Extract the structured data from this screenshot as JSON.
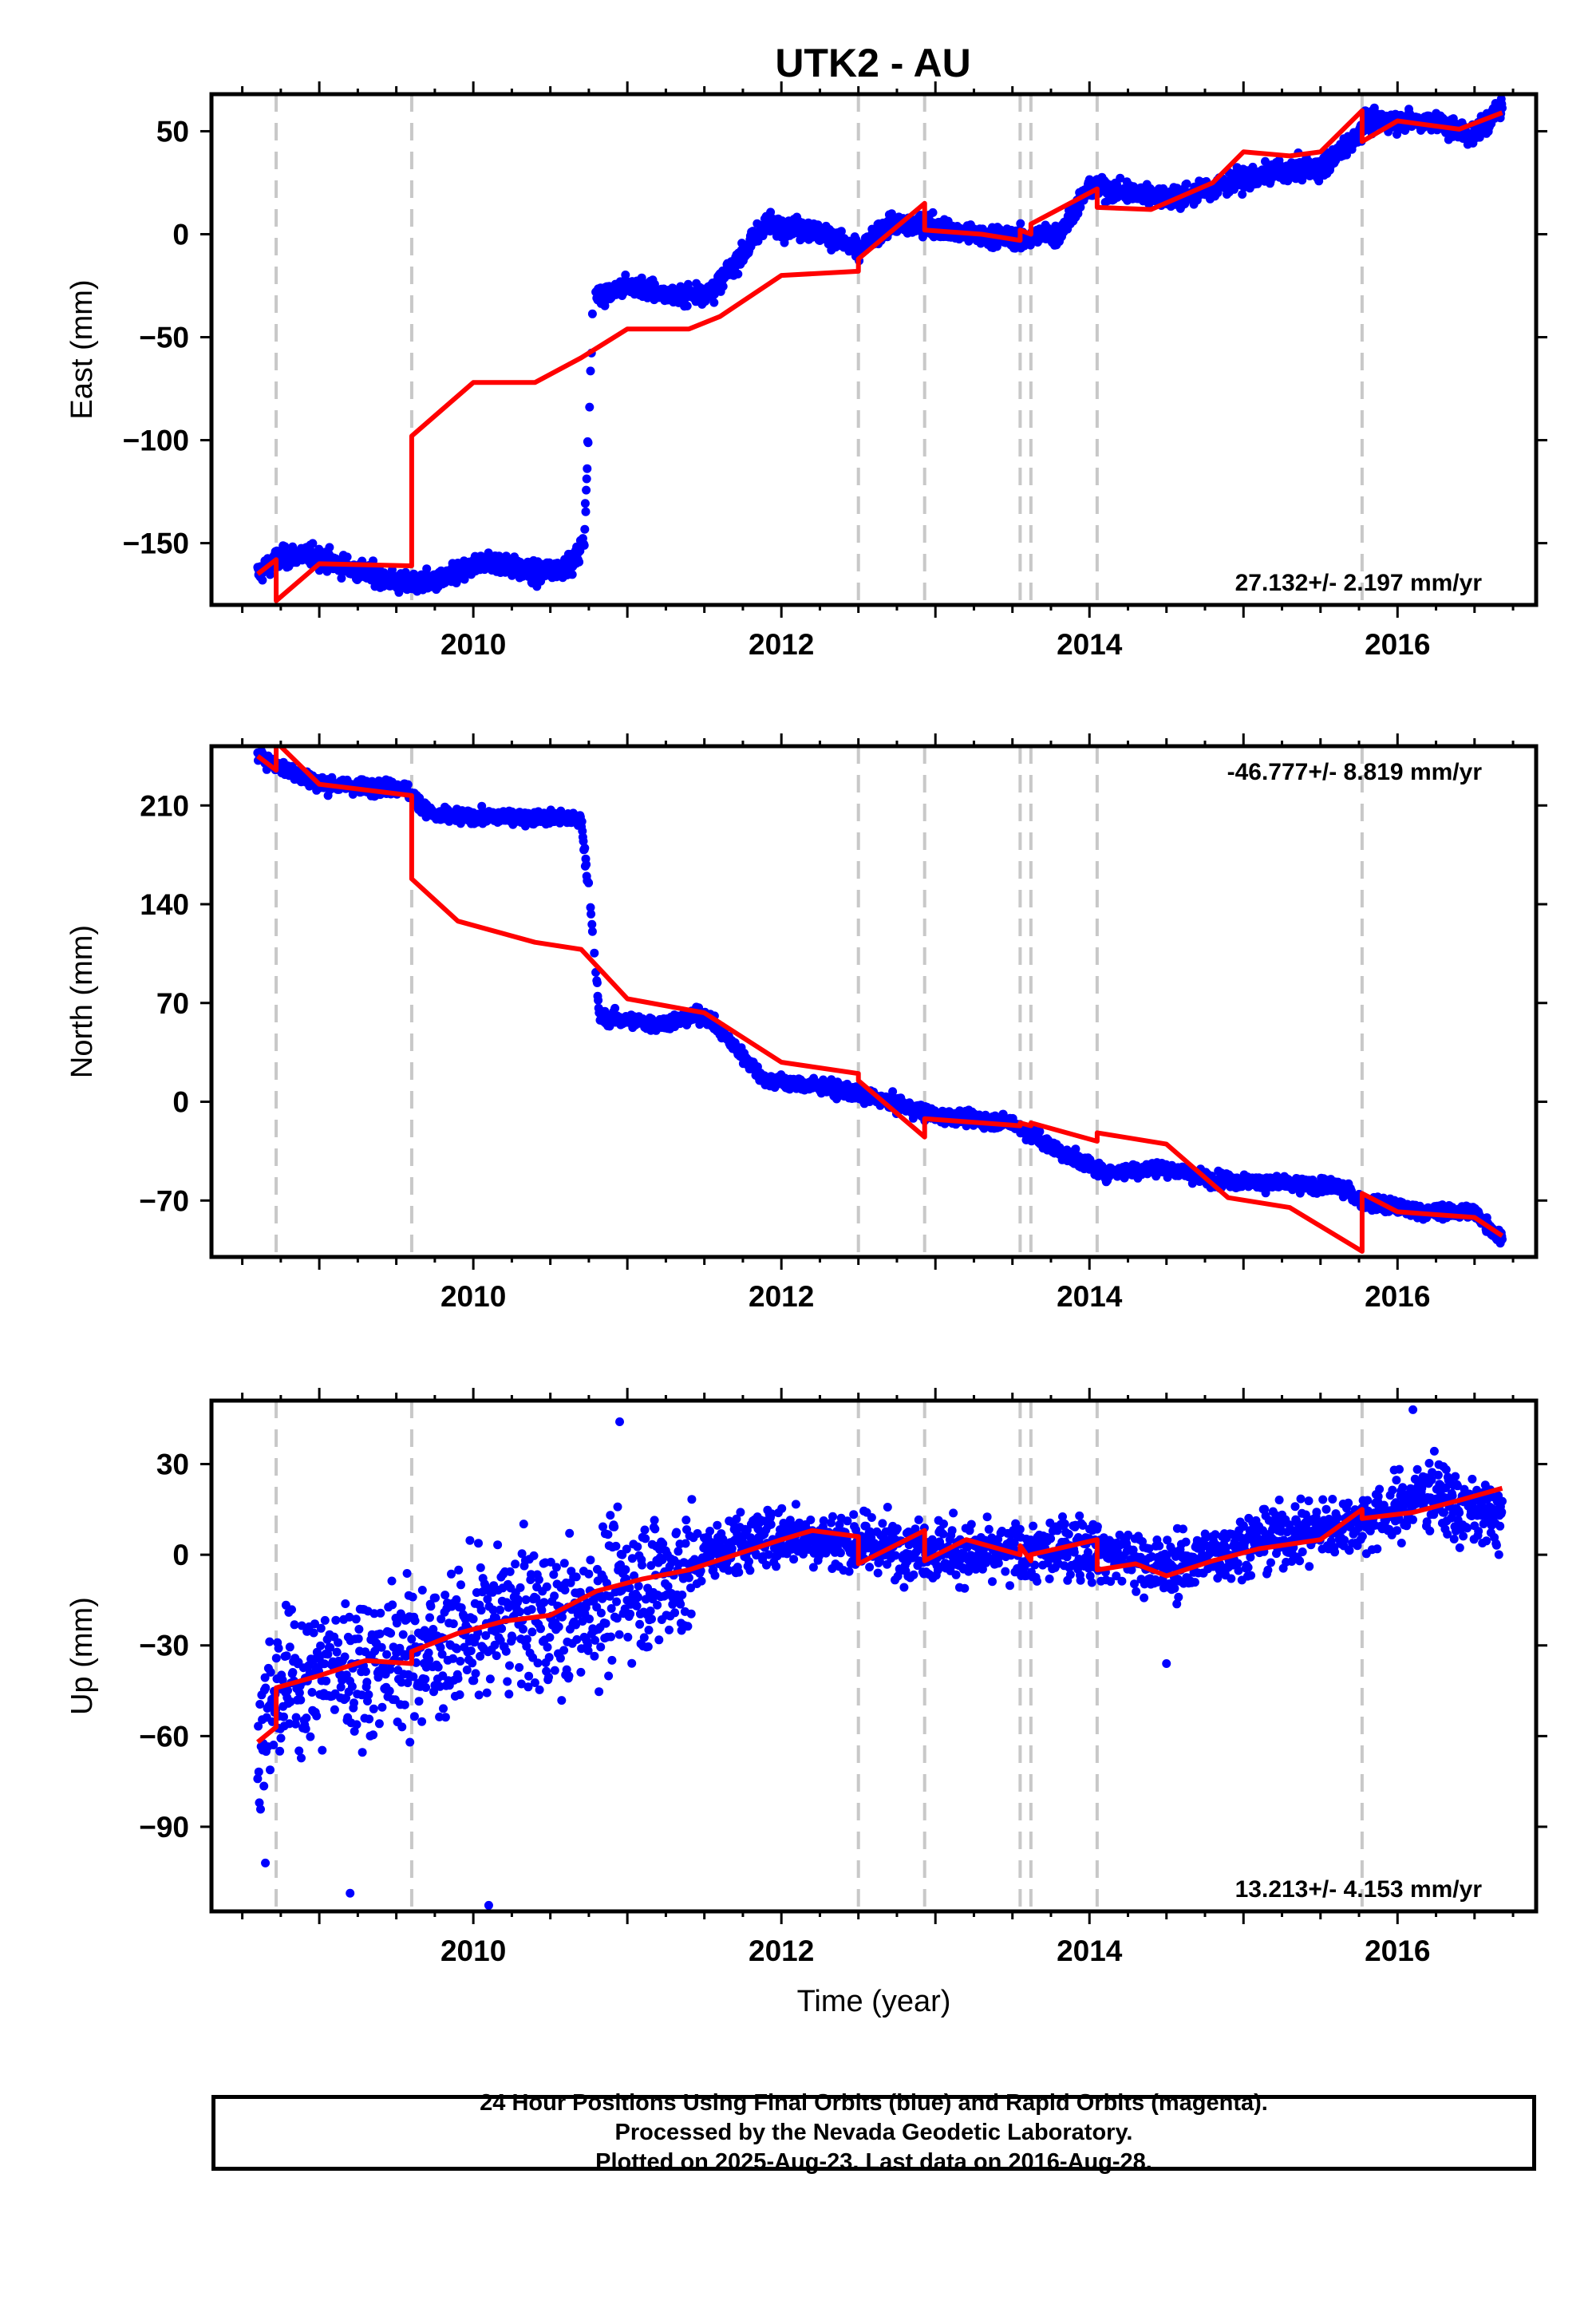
{
  "page_title": "UTK2 - AU",
  "footer": {
    "line1": "24 Hour Positions Using Final Orbits (blue) and Rapid Orbits (magenta).",
    "line2": "Processed by the Nevada Geodetic Laboratory.",
    "line3": "Plotted on 2025-Aug-23. Last data on 2016-Aug-28."
  },
  "colors": {
    "data": "#0000ff",
    "model": "#ff0000",
    "breaks": "#c8c8c8",
    "axis": "#000000"
  },
  "chart_data": [
    {
      "type": "scatter",
      "title": "UTK2 - AU",
      "ylabel": "East (mm)",
      "xlabel": "",
      "xlim": [
        2008.3,
        2016.9
      ],
      "ylim": [
        -180,
        68
      ],
      "yticks": [
        50,
        0,
        -50,
        -100,
        -150
      ],
      "ytick_labels": [
        "50",
        "0",
        "−50",
        "−100",
        "−150"
      ],
      "xticks": [
        2010,
        2012,
        2014,
        2016
      ],
      "rate_label": "27.132+/- 2.197 mm/yr",
      "rate_position": "bottom-right",
      "breaks": [
        2008.72,
        2009.6,
        2012.5,
        2012.93,
        2013.55,
        2013.62,
        2014.05,
        2015.77
      ],
      "series": [
        {
          "kind": "data",
          "x": [
            2008.6,
            2008.72,
            2008.9,
            2009.2,
            2009.55,
            2009.8,
            2010.1,
            2010.4,
            2010.65,
            2010.72,
            2010.78,
            2011.0,
            2011.3,
            2011.55,
            2011.9,
            2012.1,
            2012.3,
            2012.5,
            2012.7,
            2012.93,
            2013.2,
            2013.55,
            2013.8,
            2014.0,
            2014.3,
            2014.6,
            2014.9,
            2015.2,
            2015.5,
            2015.7,
            2015.8,
            2016.2,
            2016.5,
            2016.68
          ],
          "y": [
            -165,
            -158,
            -155,
            -162,
            -170,
            -168,
            -158,
            -165,
            -160,
            -148,
            -30,
            -25,
            -30,
            -28,
            5,
            3,
            0,
            -8,
            5,
            5,
            0,
            -2,
            0,
            23,
            20,
            18,
            25,
            30,
            32,
            45,
            55,
            55,
            48,
            62
          ]
        },
        {
          "kind": "model",
          "x": [
            2008.6,
            2008.72,
            2008.72,
            2009.0,
            2009.6,
            2009.6,
            2009.8,
            2010.0,
            2010.4,
            2010.7,
            2011.0,
            2011.4,
            2011.6,
            2012.0,
            2012.5,
            2012.5,
            2012.93,
            2012.93,
            2013.3,
            2013.55,
            2013.55,
            2013.62,
            2013.62,
            2014.05,
            2014.05,
            2014.4,
            2014.8,
            2015.0,
            2015.3,
            2015.5,
            2015.77,
            2015.77,
            2016.0,
            2016.4,
            2016.68
          ],
          "y": [
            -165,
            -158,
            -178,
            -160,
            -161,
            -98,
            -85,
            -72,
            -72,
            -60,
            -46,
            -46,
            -40,
            -20,
            -18,
            -12,
            15,
            2,
            0,
            -3,
            2,
            0,
            5,
            22,
            13,
            12,
            25,
            40,
            38,
            40,
            60,
            45,
            55,
            51,
            59
          ]
        }
      ]
    },
    {
      "type": "scatter",
      "title": "",
      "ylabel": "North (mm)",
      "xlabel": "",
      "xlim": [
        2008.3,
        2016.9
      ],
      "ylim": [
        -110,
        252
      ],
      "yticks": [
        210,
        140,
        70,
        0,
        -70
      ],
      "ytick_labels": [
        "210",
        "140",
        "70",
        "0",
        "−70"
      ],
      "xticks": [
        2010,
        2012,
        2014,
        2016
      ],
      "rate_label": "-46.777+/- 8.819 mm/yr",
      "rate_position": "top-right",
      "breaks": [
        2008.72,
        2009.6,
        2012.5,
        2012.93,
        2013.55,
        2013.62,
        2014.05,
        2015.77
      ],
      "series": [
        {
          "kind": "data",
          "x": [
            2008.6,
            2009.0,
            2009.55,
            2009.75,
            2010.2,
            2010.7,
            2010.75,
            2010.82,
            2011.2,
            2011.5,
            2011.9,
            2012.3,
            2012.7,
            2013.0,
            2013.5,
            2013.8,
            2014.1,
            2014.5,
            2014.8,
            2015.2,
            2015.6,
            2015.8,
            2016.2,
            2016.5,
            2016.68
          ],
          "y": [
            245,
            225,
            222,
            202,
            202,
            200,
            150,
            60,
            55,
            62,
            15,
            10,
            0,
            -10,
            -15,
            -35,
            -50,
            -47,
            -55,
            -58,
            -60,
            -72,
            -78,
            -78,
            -98
          ]
        },
        {
          "kind": "model",
          "x": [
            2008.6,
            2008.72,
            2008.72,
            2009.0,
            2009.6,
            2009.6,
            2009.9,
            2010.4,
            2010.7,
            2011.0,
            2011.5,
            2012.0,
            2012.5,
            2012.5,
            2012.93,
            2012.93,
            2013.55,
            2013.55,
            2013.62,
            2013.62,
            2014.05,
            2014.05,
            2014.5,
            2014.9,
            2015.3,
            2015.77,
            2015.77,
            2016.0,
            2016.5,
            2016.68
          ],
          "y": [
            245,
            235,
            255,
            225,
            217,
            158,
            128,
            113,
            108,
            73,
            63,
            28,
            20,
            15,
            -25,
            -12,
            -17,
            -15,
            -17,
            -15,
            -28,
            -22,
            -30,
            -68,
            -75,
            -106,
            -65,
            -78,
            -82,
            -95
          ]
        }
      ]
    },
    {
      "type": "scatter",
      "title": "",
      "ylabel": "Up (mm)",
      "xlabel": "Time (year)",
      "xlim": [
        2008.3,
        2016.9
      ],
      "ylim": [
        -118,
        51
      ],
      "yticks": [
        30,
        0,
        -30,
        -60,
        -90
      ],
      "ytick_labels": [
        "30",
        "0",
        "−30",
        "−60",
        "−90"
      ],
      "xticks": [
        2010,
        2012,
        2014,
        2016
      ],
      "rate_label": "13.213+/- 4.153 mm/yr",
      "rate_position": "bottom-right",
      "breaks": [
        2008.72,
        2009.6,
        2012.5,
        2012.93,
        2013.55,
        2013.62,
        2014.05,
        2015.77
      ],
      "series": [
        {
          "kind": "data",
          "x": [
            2008.6,
            2008.8,
            2009.1,
            2009.4,
            2009.7,
            2010.0,
            2010.3,
            2010.6,
            2010.9,
            2011.2,
            2011.42,
            2011.5,
            2011.8,
            2012.1,
            2012.4,
            2012.7,
            2013.0,
            2013.3,
            2013.6,
            2013.9,
            2014.2,
            2014.5,
            2014.8,
            2015.1,
            2015.4,
            2015.7,
            2016.0,
            2016.2,
            2016.4,
            2016.68
          ],
          "y": [
            -60,
            -42,
            -38,
            -35,
            -32,
            -25,
            -20,
            -22,
            -12,
            -8,
            -5,
            0,
            5,
            7,
            4,
            3,
            2,
            0,
            0,
            3,
            0,
            -5,
            0,
            5,
            8,
            10,
            15,
            22,
            15,
            12
          ]
        },
        {
          "kind": "model",
          "x": [
            2008.6,
            2008.72,
            2008.72,
            2009.0,
            2009.3,
            2009.6,
            2009.6,
            2009.9,
            2010.2,
            2010.5,
            2010.8,
            2011.1,
            2011.4,
            2011.7,
            2012.0,
            2012.2,
            2012.5,
            2012.5,
            2012.93,
            2012.93,
            2013.2,
            2013.55,
            2013.55,
            2013.62,
            2013.62,
            2014.05,
            2014.05,
            2014.3,
            2014.5,
            2014.8,
            2015.1,
            2015.5,
            2015.77,
            2015.77,
            2016.1,
            2016.4,
            2016.68
          ],
          "y": [
            -62,
            -57,
            -44,
            -40,
            -35,
            -36,
            -32,
            -26,
            -22,
            -20,
            -12,
            -8,
            -5,
            0,
            5,
            8,
            6,
            -3,
            8,
            -2,
            5,
            0,
            3,
            -2,
            0,
            5,
            -5,
            -3,
            -7,
            -2,
            2,
            5,
            15,
            12,
            14,
            18,
            22
          ]
        }
      ]
    }
  ]
}
